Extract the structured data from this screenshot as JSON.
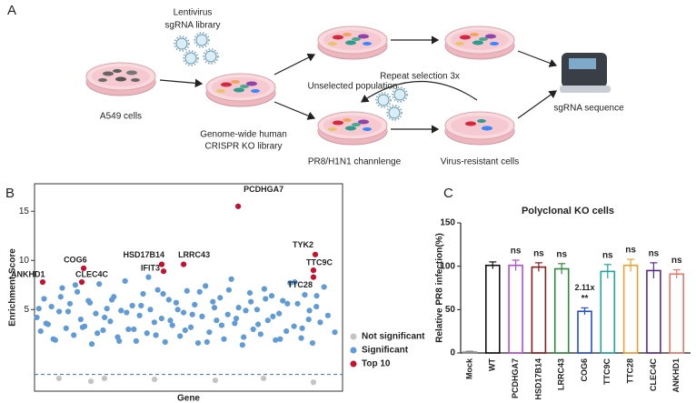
{
  "panel_labels": [
    "A",
    "B",
    "C"
  ],
  "diagram": {
    "virus_label": [
      "Lentivirus",
      "sgRNA library"
    ],
    "start_label": "A549 cells",
    "library_label": [
      "Genome-wide human",
      "CRISPR KO library"
    ],
    "unselected_label": "Unselected population",
    "repeat_label": "Repeat selection 3x",
    "challenge_label": "PR8/H1N1 channlenge",
    "resistant_label": "Virus-resistant cells",
    "sequence_label": "sgRNA sequence"
  },
  "chart_data": [
    {
      "type": "scatter",
      "x_label": "Gene",
      "y_label": "Enrichment Score",
      "xlim": [
        0,
        2000
      ],
      "ylim": [
        -3.3,
        17.8
      ],
      "yticks": [
        5,
        10,
        15
      ],
      "threshold": -1.6,
      "legend": "right",
      "series": [
        {
          "name": "Not significant",
          "color": "#c4c4c4",
          "x": [
            159,
            366,
            454,
            779,
            1174,
            1487,
            1811
          ],
          "y": [
            -2.0,
            -2.3,
            -2.0,
            -2.1,
            -2.2,
            -2.0,
            -2.4
          ]
        },
        {
          "name": "Significant",
          "color": "#5f9bd6",
          "x": [
            15,
            40,
            62,
            88,
            110,
            135,
            160,
            180,
            205,
            230,
            255,
            278,
            300,
            325,
            350,
            372,
            398,
            420,
            445,
            470,
            492,
            515,
            540,
            562,
            588,
            610,
            635,
            660,
            682,
            705,
            730,
            752,
            778,
            800,
            825,
            848,
            872,
            895,
            920,
            945,
            968,
            990,
            1015,
            1040,
            1062,
            1088,
            1110,
            1135,
            1158,
            1182,
            1205,
            1230,
            1255,
            1278,
            1300,
            1325,
            1350,
            1372,
            1398,
            1420,
            1445,
            1468,
            1492,
            1515,
            1540,
            1565,
            1588,
            1612,
            1635,
            1660,
            1685,
            1708,
            1732,
            1755,
            1780,
            1805,
            1830,
            1855,
            1880,
            1905,
            28,
            75,
            122,
            170,
            218,
            265,
            312,
            360,
            408,
            455,
            502,
            550,
            598,
            645,
            692,
            740,
            788,
            835,
            882,
            930,
            978,
            1025,
            1072,
            1120,
            1168,
            1215,
            1262,
            1310,
            1358,
            1405,
            1452,
            1500,
            1548,
            1595,
            1642,
            1690,
            1738,
            1785,
            1832,
            1950
          ],
          "y": [
            4.2,
            2.8,
            6.1,
            3.5,
            5.3,
            1.9,
            4.8,
            7.2,
            3.1,
            5.6,
            2.4,
            6.8,
            4.0,
            3.3,
            5.9,
            1.5,
            4.6,
            7.6,
            2.9,
            5.1,
            3.8,
            6.3,
            2.2,
            4.9,
            7.9,
            3.0,
            5.4,
            1.8,
            4.4,
            6.6,
            2.6,
            5.0,
            3.7,
            7.0,
            4.1,
            1.7,
            6.0,
            3.4,
            5.7,
            2.3,
            4.7,
            6.9,
            3.2,
            5.5,
            1.6,
            4.3,
            7.4,
            2.7,
            5.8,
            3.9,
            6.2,
            2.0,
            4.5,
            8.1,
            3.6,
            5.2,
            1.4,
            4.9,
            6.7,
            3.0,
            5.0,
            2.5,
            7.1,
            3.9,
            6.4,
            1.9,
            4.6,
            5.9,
            2.8,
            7.7,
            3.3,
            5.6,
            2.1,
            6.5,
            4.0,
            1.6,
            5.3,
            3.7,
            7.3,
            4.4,
            5.1,
            3.6,
            2.0,
            6.3,
            4.8,
            7.5,
            3.2,
            5.7,
            2.6,
            4.2,
            6.0,
            1.8,
            4.7,
            3.0,
            5.4,
            8.3,
            2.4,
            6.6,
            3.9,
            5.0,
            2.9,
            4.5,
            6.8,
            1.7,
            5.2,
            3.4,
            7.0,
            4.1,
            2.2,
            5.8,
            3.5,
            6.1,
            4.3,
            2.0,
            5.6,
            7.8,
            3.1,
            4.9,
            6.4,
            2.7
          ]
        },
        {
          "name": "Top 10",
          "color": "#c8102e",
          "labels": [
            "PCDHGA7",
            "TYK2",
            "TTC9C",
            "TTC28",
            "HSD17B14",
            "IFIT3",
            "LRRC43",
            "COG6",
            "CLEC4C",
            "ANKHD1"
          ],
          "x": [
            1322,
            1823,
            1811,
            1811,
            826,
            838,
            968,
            319,
            307,
            53
          ],
          "y": [
            15.5,
            10.6,
            9.0,
            8.3,
            9.6,
            8.9,
            9.6,
            9.2,
            7.8,
            7.8
          ]
        }
      ]
    },
    {
      "type": "bar",
      "title": "Polyclonal KO cells",
      "y_label": "Relative PR8 infection(%)",
      "ylim": [
        0,
        150
      ],
      "yticks": [
        0,
        50,
        100,
        150
      ],
      "categories": [
        "Mock",
        "WT",
        "PCDHGA7",
        "HSD17B14",
        "LRRC43",
        "COG6",
        "TTC9C",
        "TTC28",
        "CLEC4C",
        "ANKHD1"
      ],
      "values": [
        1,
        101,
        101,
        99,
        97,
        48,
        94,
        101,
        95,
        91
      ],
      "errors": [
        1,
        4,
        6,
        5,
        6,
        4,
        8,
        7,
        9,
        5
      ],
      "colors": [
        "#8a8a8a",
        "#111111",
        "#b44cd8",
        "#8b1a1a",
        "#2e8b3a",
        "#1f4fd8",
        "#1fa3a3",
        "#f0a030",
        "#5a2a8a",
        "#e8786a"
      ],
      "significance": [
        null,
        null,
        "ns",
        "ns",
        "ns",
        "**",
        "ns",
        "ns",
        "ns",
        "ns"
      ],
      "fold_labels": [
        null,
        null,
        null,
        null,
        null,
        "2.11x",
        null,
        null,
        null,
        null
      ]
    }
  ]
}
